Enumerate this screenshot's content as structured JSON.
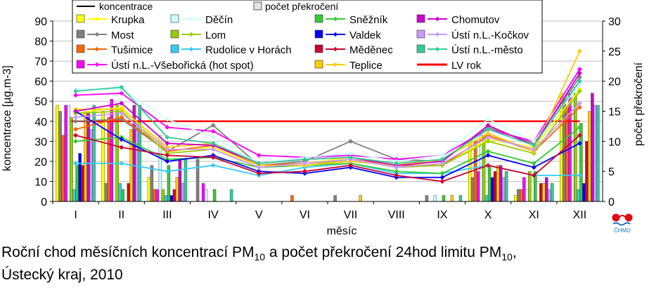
{
  "chart_data": {
    "type": "bar",
    "caption": {
      "line1_a": "Roční chod měsíčních koncentrací PM",
      "line1_sub1": "10",
      "line1_b": " a počet překročení 24hod limitu PM",
      "line1_sub2": "10",
      "line1_c": ",",
      "line2": "Ústecký kraj, 2010"
    },
    "xlabel": "měsíc",
    "ylabel": "koncentrace [µg.m-3]",
    "y2label": "počet překročení",
    "ylim": [
      0,
      90
    ],
    "y2lim": [
      0,
      30
    ],
    "yticks": [
      0,
      10,
      20,
      30,
      40,
      50,
      60,
      70,
      80,
      90
    ],
    "y2ticks": [
      0,
      5,
      10,
      15,
      20,
      25,
      30
    ],
    "categories": [
      "I",
      "II",
      "III",
      "IV",
      "V",
      "VI",
      "VII",
      "VIII",
      "IX",
      "X",
      "XI",
      "XII"
    ],
    "legend": {
      "line_label": "koncentrace",
      "bar_label": "počet překročení",
      "lv_label": "LV rok"
    },
    "limit_value": 40,
    "limit_color": "#ff0000",
    "series": [
      {
        "name": "Krupka",
        "color": "#ffff00",
        "conc": [
          44,
          47,
          25,
          27,
          17,
          19,
          22,
          19,
          18,
          31,
          27,
          56
        ],
        "exc": [
          16,
          15,
          4,
          0,
          0,
          0,
          0,
          0,
          0,
          10,
          1,
          18
        ]
      },
      {
        "name": "Most",
        "color": "#808080",
        "conc": [
          40,
          41,
          25,
          38,
          18,
          20,
          30,
          21,
          20,
          37,
          29,
          62
        ],
        "exc": [
          15,
          3,
          6,
          7,
          0,
          0,
          1,
          0,
          1,
          4,
          2,
          17
        ]
      },
      {
        "name": "Tušimice",
        "color": "#ff6600",
        "conc": [
          36,
          42,
          25,
          28,
          18,
          19,
          21,
          18,
          18,
          33,
          25,
          47
        ],
        "exc": [
          11,
          14,
          2,
          0,
          0,
          1,
          0,
          0,
          0,
          10,
          2,
          16
        ]
      },
      {
        "name": "Ústí n.L.-Všebořická (hot spot)",
        "color": "#ff00ff",
        "conc": [
          53,
          54,
          37,
          35,
          23,
          22,
          23,
          21,
          23,
          36,
          30,
          66
        ],
        "exc": [
          16,
          17,
          2,
          3,
          0,
          0,
          0,
          0,
          0,
          5,
          4,
          18
        ]
      },
      {
        "name": "Děčín",
        "color": "#ccffff",
        "conc": [
          56,
          56,
          41,
          32,
          19,
          22,
          24,
          20,
          23,
          41,
          30,
          58
        ],
        "exc": [
          16,
          13,
          11,
          2,
          0,
          0,
          0,
          0,
          1,
          11,
          2,
          19
        ]
      },
      {
        "name": "Lom",
        "color": "#99cc00",
        "conc": [
          44,
          45,
          24,
          26,
          17,
          18,
          21,
          17,
          18,
          30,
          24,
          55
        ],
        "exc": [
          14,
          16,
          2,
          0,
          0,
          0,
          0,
          0,
          0,
          11,
          5,
          18
        ]
      },
      {
        "name": "Rudolice v Horách",
        "color": "#33ccff",
        "conc": [
          19,
          19,
          15,
          18,
          13,
          17,
          19,
          14,
          14,
          18,
          13,
          13
        ],
        "exc": [
          2,
          3,
          1,
          0,
          0,
          0,
          0,
          0,
          0,
          1,
          0,
          2
        ]
      },
      {
        "name": "Sněžník",
        "color": "#33cc33",
        "conc": [
          30,
          32,
          21,
          22,
          17,
          18,
          19,
          15,
          14,
          25,
          19,
          37
        ],
        "exc": [
          6,
          2,
          6,
          2,
          0,
          0,
          0,
          0,
          1,
          6,
          5,
          13
        ]
      },
      {
        "name": "Valdek",
        "color": "#0000ff",
        "conc": [
          45,
          31,
          20,
          23,
          15,
          14,
          17,
          12,
          12,
          23,
          17,
          29
        ],
        "exc": [
          8,
          0,
          1,
          0,
          0,
          0,
          0,
          0,
          0,
          4,
          0,
          3
        ]
      },
      {
        "name": "Měděnec",
        "color": "#cc0033",
        "conc": [
          33,
          27,
          23,
          22,
          14,
          15,
          18,
          13,
          10,
          18,
          13,
          33
        ],
        "exc": [
          6,
          3,
          2,
          0,
          0,
          0,
          0,
          0,
          0,
          5,
          3,
          10
        ]
      },
      {
        "name": "Teplice",
        "color": "#ffcc00",
        "conc": [
          46,
          46,
          27,
          29,
          18,
          18,
          20,
          18,
          21,
          34,
          25,
          75
        ],
        "exc": [
          15,
          12,
          4,
          0,
          0,
          0,
          1,
          0,
          1,
          6,
          3,
          15
        ]
      },
      {
        "name": "Chomutov",
        "color": "#cc00cc",
        "conc": [
          45,
          49,
          29,
          28,
          19,
          21,
          22,
          18,
          20,
          38,
          28,
          64
        ],
        "exc": [
          15,
          16,
          7,
          0,
          0,
          0,
          0,
          0,
          0,
          6,
          4,
          18
        ]
      },
      {
        "name": "Ústí n.L.-Kočkov",
        "color": "#cc99ff",
        "conc": [
          42,
          44,
          26,
          26,
          17,
          19,
          21,
          17,
          19,
          32,
          26,
          49
        ],
        "exc": [
          12,
          13,
          3,
          0,
          0,
          0,
          0,
          0,
          0,
          4,
          2,
          16
        ]
      },
      {
        "name": "Ústí n.L.-město",
        "color": "#33cc99",
        "conc": [
          55,
          57,
          32,
          29,
          19,
          21,
          22,
          19,
          21,
          36,
          28,
          60
        ],
        "exc": [
          16,
          16,
          7,
          2,
          0,
          0,
          0,
          0,
          1,
          5,
          3,
          16
        ]
      }
    ],
    "logo_text": "ČHMÚ"
  }
}
